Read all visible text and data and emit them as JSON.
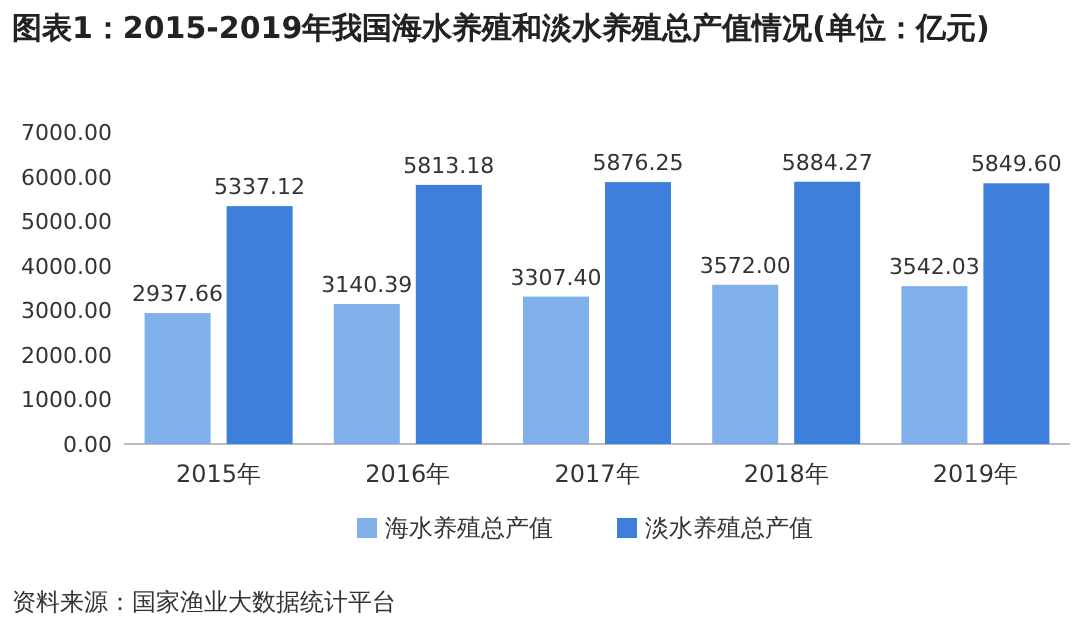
{
  "chart_data": {
    "type": "bar",
    "title": "图表1：2015-2019年我国海水养殖和淡水养殖总产值情况(单位：亿元)",
    "categories": [
      "2015年",
      "2016年",
      "2017年",
      "2018年",
      "2019年"
    ],
    "series": [
      {
        "name": "海水养殖总产值",
        "color": "#7fb0ea",
        "values": [
          2937.66,
          3140.39,
          3307.4,
          3572.0,
          3542.03
        ],
        "value_labels": [
          "2937.66",
          "3140.39",
          "3307.40",
          "3572.00",
          "3542.03"
        ]
      },
      {
        "name": "淡水养殖总产值",
        "color": "#3f7fdc",
        "values": [
          5337.12,
          5813.18,
          5876.25,
          5884.27,
          5849.6
        ],
        "value_labels": [
          "5337.12",
          "5813.18",
          "5876.25",
          "5884.27",
          "5849.60"
        ]
      }
    ],
    "ylim": [
      0,
      7000
    ],
    "yticks": [
      {
        "value": 0,
        "label": "0.00"
      },
      {
        "value": 1000,
        "label": "1000.00"
      },
      {
        "value": 2000,
        "label": "2000.00"
      },
      {
        "value": 3000,
        "label": "3000.00"
      },
      {
        "value": 4000,
        "label": "4000.00"
      },
      {
        "value": 5000,
        "label": "5000.00"
      },
      {
        "value": 6000,
        "label": "6000.00"
      },
      {
        "value": 7000,
        "label": "7000.00"
      }
    ],
    "legend": "bottom",
    "grid": false,
    "annotations": [
      "资料来源：国家渔业大数据统计平台"
    ]
  }
}
